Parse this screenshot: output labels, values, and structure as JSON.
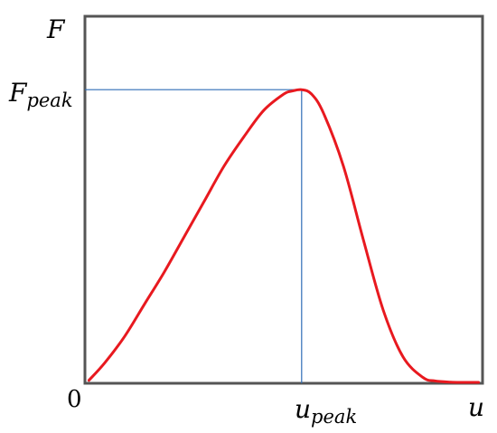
{
  "chart_data": {
    "type": "line",
    "title": "",
    "xlabel": "u",
    "ylabel": "F",
    "origin_label": "0",
    "x_marker": {
      "base": "u",
      "sub": "peak"
    },
    "y_marker": {
      "base": "F",
      "sub": "peak"
    },
    "grid": false,
    "colors": {
      "curve": "#e8191f",
      "guide": "#2f6db5",
      "frame": "#555555"
    },
    "xlim": [
      0,
      1
    ],
    "ylim": [
      0,
      1.25
    ],
    "peak": {
      "x": 0.545,
      "y": 1.0
    },
    "series": [
      {
        "x": [
          0.01,
          0.05,
          0.1,
          0.15,
          0.2,
          0.25,
          0.3,
          0.35,
          0.4,
          0.45,
          0.5,
          0.52,
          0.545,
          0.57,
          0.6,
          0.65,
          0.7,
          0.75,
          0.8,
          0.85,
          0.88,
          0.92,
          0.96,
          0.99
        ],
        "y": [
          0.01,
          0.07,
          0.16,
          0.27,
          0.38,
          0.5,
          0.62,
          0.74,
          0.84,
          0.93,
          0.985,
          0.995,
          1.0,
          0.985,
          0.92,
          0.74,
          0.49,
          0.25,
          0.09,
          0.02,
          0.008,
          0.004,
          0.003,
          0.003
        ]
      }
    ]
  }
}
